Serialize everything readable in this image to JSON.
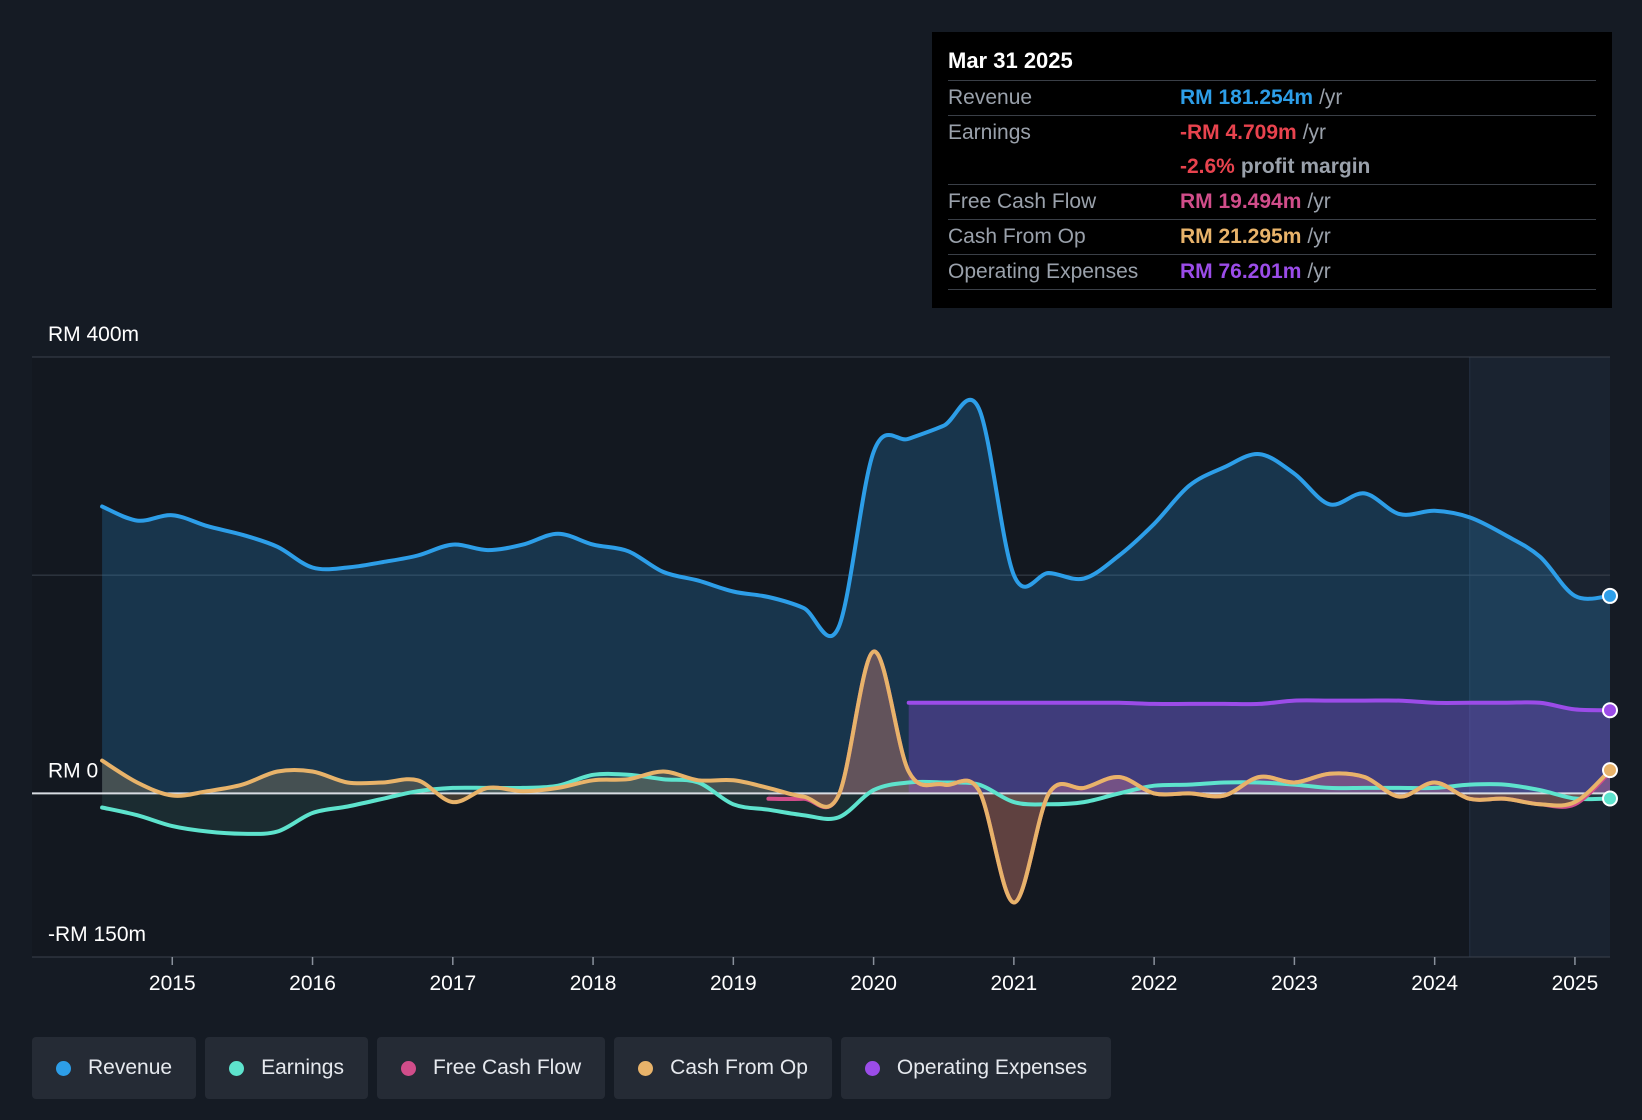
{
  "tooltip": {
    "date": "Mar 31 2025",
    "rows": [
      {
        "label": "Revenue",
        "value": "RM 181.254m",
        "unit": "/yr",
        "color": "#2d9ee8"
      },
      {
        "label": "Earnings",
        "value": "-RM 4.709m",
        "unit": "/yr",
        "color": "#e8434e"
      },
      {
        "label": "",
        "value": "-2.6%",
        "unit": "profit margin",
        "color": "#e8434e"
      },
      {
        "label": "Free Cash Flow",
        "value": "RM 19.494m",
        "unit": "/yr",
        "color": "#d14d8a"
      },
      {
        "label": "Cash From Op",
        "value": "RM 21.295m",
        "unit": "/yr",
        "color": "#e8b36a"
      },
      {
        "label": "Operating Expenses",
        "value": "RM 76.201m",
        "unit": "/yr",
        "color": "#9b4ce8"
      }
    ]
  },
  "legend": [
    {
      "label": "Revenue",
      "color": "#2d9ee8"
    },
    {
      "label": "Earnings",
      "color": "#5ee3cd"
    },
    {
      "label": "Free Cash Flow",
      "color": "#d14d8a"
    },
    {
      "label": "Cash From Op",
      "color": "#e8b36a"
    },
    {
      "label": "Operating Expenses",
      "color": "#9b4ce8"
    }
  ],
  "chart_data": {
    "type": "area",
    "y_tick_labels": [
      "RM 400m",
      "RM 0",
      "-RM 150m"
    ],
    "ylim": [
      -150,
      400
    ],
    "xlim": [
      2014.0,
      2025.25
    ],
    "x_tick_labels": [
      "2015",
      "2016",
      "2017",
      "2018",
      "2019",
      "2020",
      "2021",
      "2022",
      "2023",
      "2024",
      "2025"
    ],
    "grid": true,
    "forecast_shade_from": 2024.25,
    "series": [
      {
        "name": "Revenue",
        "color": "#2d9ee8",
        "points": [
          [
            2014.5,
            263
          ],
          [
            2014.75,
            250
          ],
          [
            2015.0,
            255
          ],
          [
            2015.25,
            245
          ],
          [
            2015.5,
            237
          ],
          [
            2015.75,
            226
          ],
          [
            2016.0,
            207
          ],
          [
            2016.25,
            207
          ],
          [
            2016.5,
            212
          ],
          [
            2016.75,
            218
          ],
          [
            2017.0,
            228
          ],
          [
            2017.25,
            223
          ],
          [
            2017.5,
            228
          ],
          [
            2017.75,
            238
          ],
          [
            2018.0,
            228
          ],
          [
            2018.25,
            222
          ],
          [
            2018.5,
            203
          ],
          [
            2018.75,
            195
          ],
          [
            2019.0,
            185
          ],
          [
            2019.25,
            180
          ],
          [
            2019.5,
            170
          ],
          [
            2019.75,
            152
          ],
          [
            2020.0,
            313
          ],
          [
            2020.25,
            325
          ],
          [
            2020.5,
            337
          ],
          [
            2020.75,
            353
          ],
          [
            2021.0,
            200
          ],
          [
            2021.25,
            202
          ],
          [
            2021.5,
            197
          ],
          [
            2021.75,
            218
          ],
          [
            2022.0,
            247
          ],
          [
            2022.25,
            282
          ],
          [
            2022.5,
            299
          ],
          [
            2022.75,
            311
          ],
          [
            2023.0,
            293
          ],
          [
            2023.25,
            265
          ],
          [
            2023.5,
            275
          ],
          [
            2023.75,
            256
          ],
          [
            2024.0,
            259
          ],
          [
            2024.25,
            253
          ],
          [
            2024.5,
            237
          ],
          [
            2024.75,
            217
          ],
          [
            2025.0,
            181
          ],
          [
            2025.25,
            181
          ]
        ]
      },
      {
        "name": "Earnings",
        "color": "#5ee3cd",
        "points": [
          [
            2014.5,
            -13
          ],
          [
            2014.75,
            -20
          ],
          [
            2015.0,
            -30
          ],
          [
            2015.25,
            -35
          ],
          [
            2015.5,
            -37
          ],
          [
            2015.75,
            -35
          ],
          [
            2016.0,
            -18
          ],
          [
            2016.25,
            -12
          ],
          [
            2016.5,
            -5
          ],
          [
            2016.75,
            2
          ],
          [
            2017.0,
            5
          ],
          [
            2017.25,
            5
          ],
          [
            2017.5,
            5
          ],
          [
            2017.75,
            7
          ],
          [
            2018.0,
            17
          ],
          [
            2018.25,
            17
          ],
          [
            2018.5,
            13
          ],
          [
            2018.75,
            10
          ],
          [
            2019.0,
            -10
          ],
          [
            2019.25,
            -15
          ],
          [
            2019.5,
            -20
          ],
          [
            2019.75,
            -22
          ],
          [
            2020.0,
            3
          ],
          [
            2020.25,
            10
          ],
          [
            2020.5,
            10
          ],
          [
            2020.75,
            8
          ],
          [
            2021.0,
            -8
          ],
          [
            2021.25,
            -10
          ],
          [
            2021.5,
            -8
          ],
          [
            2021.75,
            0
          ],
          [
            2022.0,
            7
          ],
          [
            2022.25,
            8
          ],
          [
            2022.5,
            10
          ],
          [
            2022.75,
            10
          ],
          [
            2023.0,
            8
          ],
          [
            2023.25,
            5
          ],
          [
            2023.5,
            5
          ],
          [
            2023.75,
            5
          ],
          [
            2024.0,
            5
          ],
          [
            2024.25,
            8
          ],
          [
            2024.5,
            8
          ],
          [
            2024.75,
            3
          ],
          [
            2025.0,
            -4.7
          ],
          [
            2025.25,
            -4.7
          ]
        ]
      },
      {
        "name": "Free Cash Flow",
        "color": "#d14d8a",
        "points": [
          [
            2019.25,
            -5
          ],
          [
            2019.5,
            -5
          ],
          [
            2019.75,
            -2
          ],
          [
            2020.0,
            130
          ],
          [
            2020.25,
            20
          ],
          [
            2020.5,
            8
          ],
          [
            2020.75,
            3
          ],
          [
            2021.0,
            -100
          ],
          [
            2021.25,
            0
          ],
          [
            2021.5,
            5
          ],
          [
            2021.75,
            15
          ],
          [
            2022.0,
            0
          ],
          [
            2022.25,
            0
          ],
          [
            2022.5,
            -2
          ],
          [
            2022.75,
            15
          ],
          [
            2023.0,
            10
          ],
          [
            2023.25,
            18
          ],
          [
            2023.5,
            15
          ],
          [
            2023.75,
            -3
          ],
          [
            2024.0,
            10
          ],
          [
            2024.25,
            -5
          ],
          [
            2024.5,
            -5
          ],
          [
            2024.75,
            -10
          ],
          [
            2025.0,
            -10
          ],
          [
            2025.25,
            19.5
          ]
        ]
      },
      {
        "name": "Cash From Op",
        "color": "#e8b36a",
        "points": [
          [
            2014.5,
            30
          ],
          [
            2014.75,
            10
          ],
          [
            2015.0,
            -2
          ],
          [
            2015.25,
            2
          ],
          [
            2015.5,
            8
          ],
          [
            2015.75,
            20
          ],
          [
            2016.0,
            20
          ],
          [
            2016.25,
            10
          ],
          [
            2016.5,
            10
          ],
          [
            2016.75,
            12
          ],
          [
            2017.0,
            -8
          ],
          [
            2017.25,
            5
          ],
          [
            2017.5,
            2
          ],
          [
            2017.75,
            5
          ],
          [
            2018.0,
            12
          ],
          [
            2018.25,
            13
          ],
          [
            2018.5,
            20
          ],
          [
            2018.75,
            12
          ],
          [
            2019.0,
            12
          ],
          [
            2019.25,
            5
          ],
          [
            2019.5,
            -3
          ],
          [
            2019.75,
            -2
          ],
          [
            2020.0,
            130
          ],
          [
            2020.25,
            20
          ],
          [
            2020.5,
            8
          ],
          [
            2020.75,
            3
          ],
          [
            2021.0,
            -100
          ],
          [
            2021.25,
            0
          ],
          [
            2021.5,
            5
          ],
          [
            2021.75,
            15
          ],
          [
            2022.0,
            0
          ],
          [
            2022.25,
            0
          ],
          [
            2022.5,
            -2
          ],
          [
            2022.75,
            15
          ],
          [
            2023.0,
            10
          ],
          [
            2023.25,
            18
          ],
          [
            2023.5,
            15
          ],
          [
            2023.75,
            -3
          ],
          [
            2024.0,
            10
          ],
          [
            2024.25,
            -5
          ],
          [
            2024.5,
            -5
          ],
          [
            2024.75,
            -10
          ],
          [
            2025.0,
            -8
          ],
          [
            2025.25,
            21.3
          ]
        ]
      },
      {
        "name": "Operating Expenses",
        "color": "#9b4ce8",
        "points": [
          [
            2020.25,
            83
          ],
          [
            2020.5,
            83
          ],
          [
            2020.75,
            83
          ],
          [
            2021.0,
            83
          ],
          [
            2021.25,
            83
          ],
          [
            2021.5,
            83
          ],
          [
            2021.75,
            83
          ],
          [
            2022.0,
            82
          ],
          [
            2022.25,
            82
          ],
          [
            2022.5,
            82
          ],
          [
            2022.75,
            82
          ],
          [
            2023.0,
            85
          ],
          [
            2023.25,
            85
          ],
          [
            2023.5,
            85
          ],
          [
            2023.75,
            85
          ],
          [
            2024.0,
            83
          ],
          [
            2024.25,
            83
          ],
          [
            2024.5,
            83
          ],
          [
            2024.75,
            83
          ],
          [
            2025.0,
            77
          ],
          [
            2025.25,
            76.2
          ]
        ]
      }
    ]
  }
}
